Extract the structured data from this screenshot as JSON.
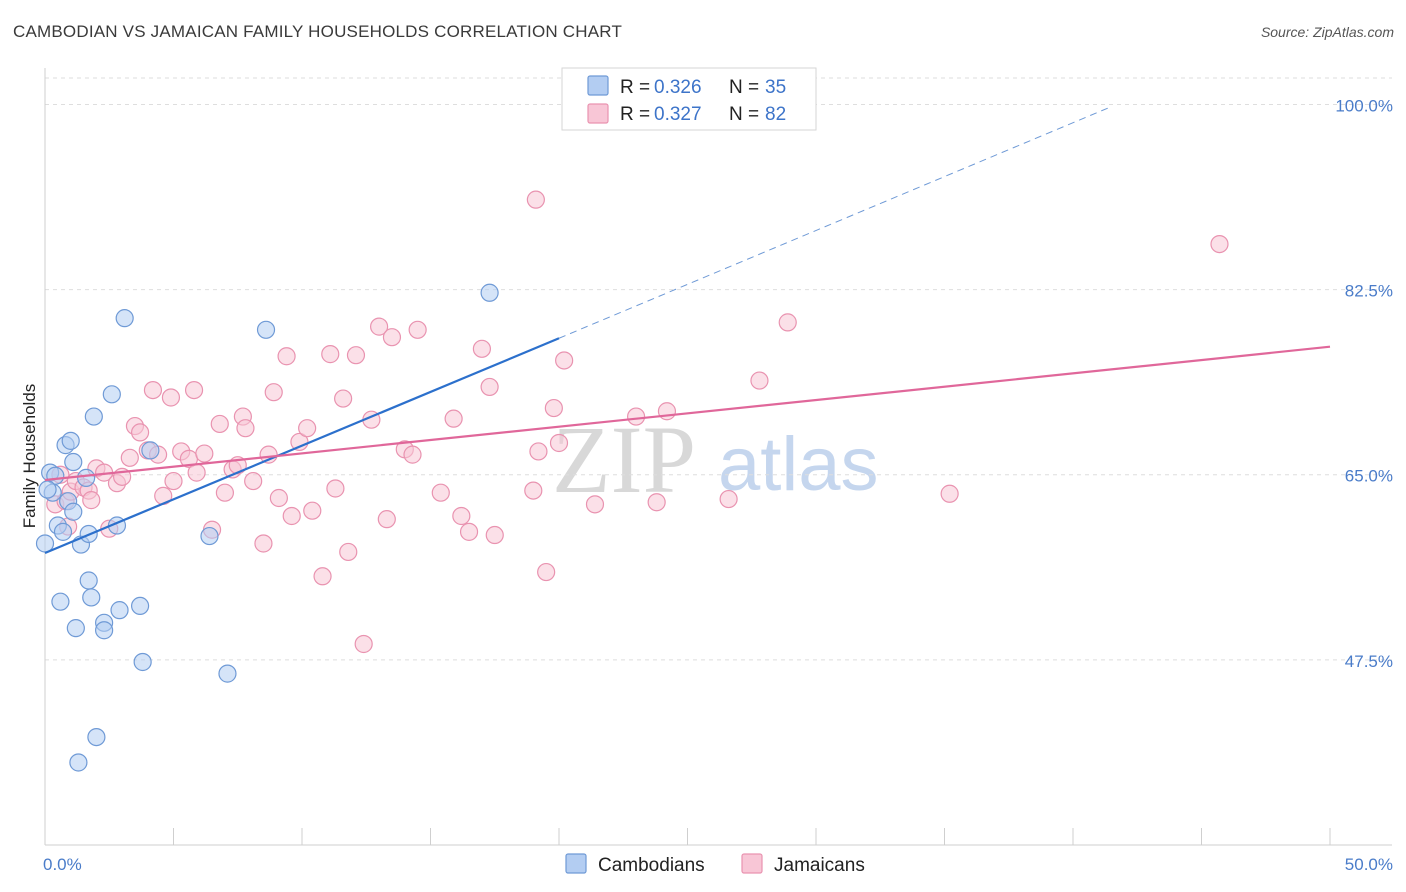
{
  "title": "CAMBODIAN VS JAMAICAN FAMILY HOUSEHOLDS CORRELATION CHART",
  "source": "Source: ZipAtlas.com",
  "watermark": {
    "zip": "ZIP",
    "atlas": "atlas"
  },
  "legend": {
    "rows": [
      {
        "r_label": "R = ",
        "r_value": "0.326",
        "n_label": "N = ",
        "n_value": "35"
      },
      {
        "r_label": "R = ",
        "r_value": "0.327",
        "n_label": "N = ",
        "n_value": "82"
      }
    ]
  },
  "colors": {
    "cambodians_fill": "#b3cdf2",
    "cambodians_stroke": "#6f9ad6",
    "cambodians_line": "#2c70cc",
    "jamaicans_fill": "#f8c6d6",
    "jamaicans_stroke": "#e993b0",
    "jamaicans_line": "#e0679a"
  },
  "chart_data": {
    "type": "scatter",
    "title": "CAMBODIAN VS JAMAICAN FAMILY HOUSEHOLDS CORRELATION CHART",
    "xlabel": "",
    "ylabel": "Family Households",
    "xlim": [
      0,
      50
    ],
    "ylim": [
      30,
      102.5
    ],
    "x_tick_labels": [
      "0.0%",
      "50.0%"
    ],
    "y_ticks": [
      47.5,
      65.0,
      82.5,
      100.0
    ],
    "y_tick_labels": [
      "47.5%",
      "65.0%",
      "82.5%",
      "100.0%"
    ],
    "grid": true,
    "series": [
      {
        "name": "Cambodians",
        "r": 0.326,
        "n": 35,
        "trend": {
          "x0": 0.0,
          "y0": 57.6,
          "x1": 20.0,
          "y1": 77.9,
          "dash_to_x": 41.5,
          "dash_to_y": 99.8
        },
        "points": [
          [
            0.0,
            58.5
          ],
          [
            0.2,
            65.2
          ],
          [
            0.3,
            63.3
          ],
          [
            0.4,
            64.9
          ],
          [
            0.5,
            60.2
          ],
          [
            0.7,
            59.6
          ],
          [
            0.8,
            67.8
          ],
          [
            0.9,
            62.5
          ],
          [
            1.0,
            68.2
          ],
          [
            1.1,
            61.5
          ],
          [
            1.1,
            66.2
          ],
          [
            1.2,
            50.5
          ],
          [
            1.3,
            37.8
          ],
          [
            1.4,
            58.4
          ],
          [
            1.6,
            64.7
          ],
          [
            1.7,
            59.4
          ],
          [
            1.7,
            55.0
          ],
          [
            1.8,
            53.4
          ],
          [
            1.9,
            70.5
          ],
          [
            2.0,
            40.2
          ],
          [
            2.3,
            51.0
          ],
          [
            2.3,
            50.3
          ],
          [
            2.6,
            72.6
          ],
          [
            2.8,
            60.2
          ],
          [
            2.9,
            52.2
          ],
          [
            3.1,
            79.8
          ],
          [
            3.7,
            52.6
          ],
          [
            3.8,
            47.3
          ],
          [
            4.1,
            67.3
          ],
          [
            6.4,
            59.2
          ],
          [
            7.1,
            46.2
          ],
          [
            8.6,
            78.7
          ],
          [
            17.3,
            82.2
          ],
          [
            0.1,
            63.6
          ],
          [
            0.6,
            53.0
          ]
        ]
      },
      {
        "name": "Jamaicans",
        "r": 0.327,
        "n": 82,
        "trend": {
          "x0": 0.0,
          "y0": 64.5,
          "x1": 50.0,
          "y1": 77.1
        },
        "points": [
          [
            0.4,
            62.2
          ],
          [
            0.6,
            65.0
          ],
          [
            0.8,
            62.5
          ],
          [
            0.9,
            60.1
          ],
          [
            1.0,
            63.4
          ],
          [
            1.2,
            64.4
          ],
          [
            1.5,
            63.8
          ],
          [
            1.7,
            63.5
          ],
          [
            1.8,
            62.6
          ],
          [
            2.0,
            65.6
          ],
          [
            2.3,
            65.2
          ],
          [
            2.5,
            59.9
          ],
          [
            2.8,
            64.2
          ],
          [
            3.0,
            64.8
          ],
          [
            3.3,
            66.6
          ],
          [
            3.5,
            69.6
          ],
          [
            3.7,
            69.0
          ],
          [
            4.0,
            67.3
          ],
          [
            4.2,
            73.0
          ],
          [
            4.4,
            66.9
          ],
          [
            4.6,
            63.0
          ],
          [
            4.9,
            72.3
          ],
          [
            5.0,
            64.4
          ],
          [
            5.3,
            67.2
          ],
          [
            5.6,
            66.5
          ],
          [
            5.8,
            73.0
          ],
          [
            5.9,
            65.2
          ],
          [
            6.2,
            67.0
          ],
          [
            6.5,
            59.8
          ],
          [
            6.8,
            69.8
          ],
          [
            7.0,
            63.3
          ],
          [
            7.3,
            65.5
          ],
          [
            7.5,
            65.9
          ],
          [
            7.7,
            70.5
          ],
          [
            7.8,
            69.4
          ],
          [
            8.1,
            64.4
          ],
          [
            8.5,
            58.5
          ],
          [
            8.7,
            66.9
          ],
          [
            8.9,
            72.8
          ],
          [
            9.1,
            62.8
          ],
          [
            9.4,
            76.2
          ],
          [
            9.6,
            61.1
          ],
          [
            9.9,
            68.1
          ],
          [
            10.2,
            69.4
          ],
          [
            10.4,
            61.6
          ],
          [
            10.8,
            55.4
          ],
          [
            11.1,
            76.4
          ],
          [
            11.3,
            63.7
          ],
          [
            11.6,
            72.2
          ],
          [
            11.8,
            57.7
          ],
          [
            12.1,
            76.3
          ],
          [
            12.4,
            49.0
          ],
          [
            12.7,
            70.2
          ],
          [
            13.0,
            79.0
          ],
          [
            13.3,
            60.8
          ],
          [
            13.5,
            78.0
          ],
          [
            14.0,
            67.4
          ],
          [
            14.3,
            66.9
          ],
          [
            14.5,
            78.7
          ],
          [
            15.4,
            63.3
          ],
          [
            15.9,
            70.3
          ],
          [
            16.2,
            61.1
          ],
          [
            16.5,
            59.6
          ],
          [
            17.0,
            76.9
          ],
          [
            17.3,
            73.3
          ],
          [
            17.5,
            59.3
          ],
          [
            19.1,
            91.0
          ],
          [
            19.0,
            63.5
          ],
          [
            19.2,
            67.2
          ],
          [
            19.5,
            55.8
          ],
          [
            19.8,
            71.3
          ],
          [
            20.0,
            68.0
          ],
          [
            20.2,
            75.8
          ],
          [
            21.4,
            62.2
          ],
          [
            23.0,
            70.5
          ],
          [
            23.8,
            62.4
          ],
          [
            24.2,
            71.0
          ],
          [
            26.6,
            62.7
          ],
          [
            27.8,
            73.9
          ],
          [
            28.9,
            79.4
          ],
          [
            35.2,
            63.2
          ],
          [
            45.7,
            86.8
          ]
        ]
      }
    ]
  },
  "bottom_legend": [
    "Cambodians",
    "Jamaicans"
  ]
}
